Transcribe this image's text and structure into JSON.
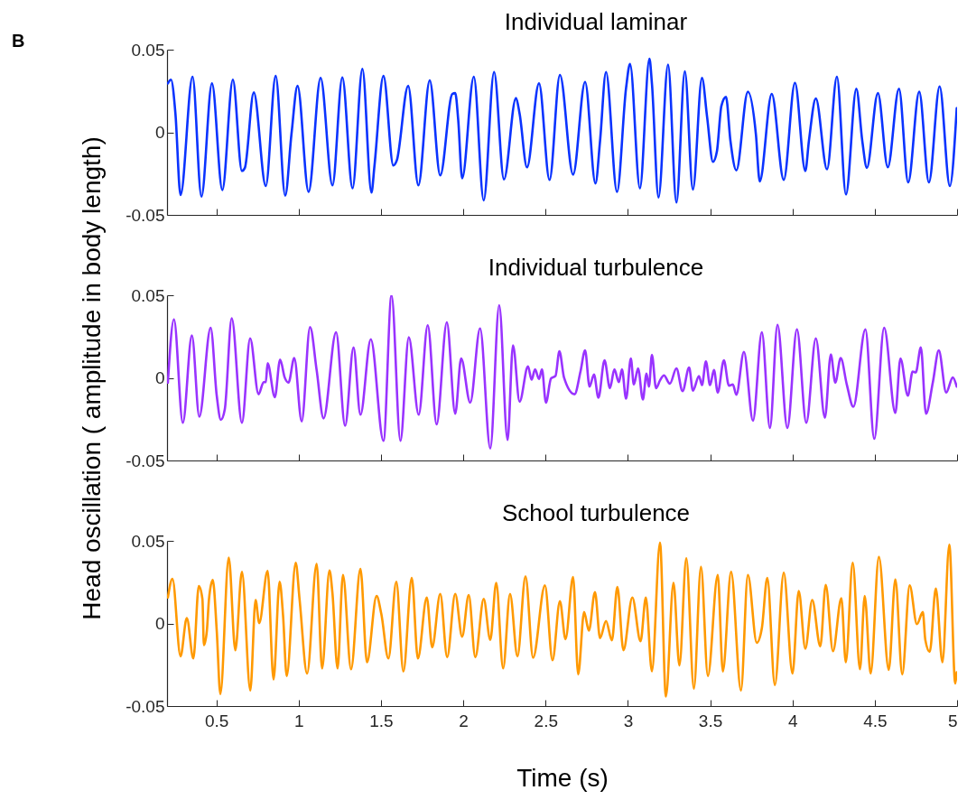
{
  "chart_data": [
    {
      "type": "line",
      "title": "Individual laminar",
      "annotations": [
        "B"
      ],
      "xlim": [
        0.2,
        5
      ],
      "xticks": [
        0.5,
        1,
        1.5,
        2,
        2.5,
        3,
        3.5,
        4,
        4.5,
        5
      ],
      "ylim": [
        -0.05,
        0.05
      ],
      "yticks": [
        -0.05,
        0,
        0.05
      ],
      "tick_labels": "y",
      "grid": false,
      "legend": false,
      "marker": "none",
      "line_style": "solid",
      "x": [
        0.205,
        0.224,
        0.251,
        0.282,
        0.355,
        0.409,
        0.473,
        0.536,
        0.6,
        0.655,
        0.673,
        0.727,
        0.8,
        0.86,
        0.918,
        0.956,
        0.993,
        1.06,
        1.133,
        1.205,
        1.265,
        1.327,
        1.387,
        1.442,
        1.46,
        1.515,
        1.575,
        1.596,
        1.665,
        1.727,
        1.796,
        1.86,
        1.933,
        1.951,
        1.969,
        1.993,
        2.064,
        2.124,
        2.187,
        2.247,
        2.32,
        2.342,
        2.387,
        2.46,
        2.524,
        2.587,
        2.667,
        2.74,
        2.803,
        2.831,
        2.867,
        2.934,
        2.989,
        3.013,
        3.073,
        3.131,
        3.146,
        3.186,
        3.244,
        3.295,
        3.346,
        3.395,
        3.45,
        3.481,
        3.517,
        3.541,
        3.568,
        3.596,
        3.623,
        3.659,
        3.729,
        3.778,
        3.801,
        3.874,
        3.947,
        4.015,
        4.078,
        4.1,
        4.142,
        4.21,
        4.27,
        4.325,
        4.388,
        4.424,
        4.452,
        4.519,
        4.579,
        4.647,
        4.703,
        4.77,
        4.829,
        4.894,
        4.956,
        4.998
      ],
      "series": [
        {
          "color": "#0a33ff",
          "values": [
            0.0296,
            0.0318,
            0.0113,
            -0.038,
            0.0336,
            -0.0389,
            0.0296,
            -0.0349,
            0.0318,
            -0.0234,
            -0.0215,
            0.0241,
            -0.0325,
            0.0341,
            -0.0383,
            -0.0011,
            0.0281,
            -0.0361,
            0.0329,
            -0.0321,
            0.0332,
            -0.0339,
            0.0383,
            -0.0365,
            -0.0206,
            0.0341,
            -0.0201,
            -0.017,
            0.0281,
            -0.0321,
            0.0314,
            -0.0261,
            0.0232,
            0.0237,
            0.0077,
            -0.0279,
            0.0336,
            -0.0412,
            0.0365,
            -0.0285,
            0.0208,
            0.0113,
            -0.0212,
            0.0296,
            -0.0288,
            0.0347,
            -0.0256,
            0.0305,
            -0.031,
            -0.0051,
            0.0365,
            -0.0361,
            0.0268,
            0.0414,
            -0.0339,
            0.0445,
            0.0296,
            -0.0394,
            0.0409,
            -0.0425,
            0.0369,
            -0.0347,
            0.0329,
            0.0095,
            -0.0179,
            -0.0115,
            0.0159,
            0.0214,
            -0.0051,
            -0.023,
            0.0245,
            -0.0015,
            -0.0297,
            0.0232,
            -0.0288,
            0.0299,
            -0.0234,
            -0.0051,
            0.0204,
            -0.0224,
            0.0336,
            -0.0376,
            0.0263,
            -0.0051,
            -0.0215,
            0.0237,
            -0.0212,
            0.0263,
            -0.0303,
            0.0245,
            -0.0303,
            0.0277,
            -0.0325,
            0.0146
          ]
        }
      ]
    },
    {
      "type": "line",
      "title": "Individual turbulence",
      "ylabel": "Head oscillation ( amplitude in body length)",
      "xlim": [
        0.2,
        5
      ],
      "xticks": [
        0.5,
        1,
        1.5,
        2,
        2.5,
        3,
        3.5,
        4,
        4.5,
        5
      ],
      "ylim": [
        -0.05,
        0.05
      ],
      "yticks": [
        -0.05,
        0,
        0.05
      ],
      "tick_labels": "y",
      "grid": false,
      "legend": false,
      "marker": "none",
      "line_style": "solid",
      "x": [
        0.205,
        0.242,
        0.296,
        0.351,
        0.396,
        0.465,
        0.502,
        0.527,
        0.551,
        0.593,
        0.655,
        0.705,
        0.756,
        0.787,
        0.8,
        0.811,
        0.855,
        0.887,
        0.915,
        0.938,
        0.973,
        1.018,
        1.069,
        1.109,
        1.151,
        1.227,
        1.282,
        1.333,
        1.375,
        1.438,
        1.515,
        1.564,
        1.618,
        1.669,
        1.729,
        1.784,
        1.838,
        1.9,
        1.951,
        1.987,
        2.042,
        2.102,
        2.164,
        2.218,
        2.269,
        2.302,
        2.342,
        2.393,
        2.415,
        2.436,
        2.46,
        2.478,
        2.502,
        2.533,
        2.56,
        2.584,
        2.612,
        2.676,
        2.712,
        2.74,
        2.767,
        2.794,
        2.821,
        2.858,
        2.891,
        2.918,
        2.945,
        2.964,
        2.989,
        3.018,
        3.036,
        3.062,
        3.091,
        3.113,
        3.128,
        3.146,
        3.171,
        3.195,
        3.219,
        3.255,
        3.295,
        3.332,
        3.372,
        3.395,
        3.432,
        3.45,
        3.474,
        3.499,
        3.523,
        3.546,
        3.583,
        3.614,
        3.638,
        3.659,
        3.705,
        3.76,
        3.814,
        3.863,
        3.909,
        3.969,
        4.027,
        4.084,
        4.142,
        4.197,
        4.233,
        4.26,
        4.293,
        4.33,
        4.37,
        4.443,
        4.497,
        4.557,
        4.625,
        4.656,
        4.701,
        4.73,
        4.749,
        4.78,
        4.811,
        4.853,
        4.889,
        4.934,
        4.974,
        4.998
      ],
      "series": [
        {
          "color": "#9933ff",
          "values": [
            -0.0029,
            0.0354,
            -0.0272,
            0.0257,
            -0.0235,
            0.0303,
            -0.0108,
            -0.0254,
            -0.019,
            0.0361,
            -0.0272,
            0.0239,
            -0.0099,
            -0.0026,
            -0.0026,
            0.0088,
            -0.0117,
            0.0111,
            0.0002,
            -0.0029,
            0.012,
            -0.0263,
            0.0307,
            0.0047,
            -0.0245,
            0.0276,
            -0.029,
            0.0184,
            -0.0223,
            0.0234,
            -0.0381,
            0.05,
            -0.0381,
            0.0245,
            -0.0223,
            0.0318,
            -0.0281,
            0.0336,
            -0.0217,
            0.0117,
            -0.015,
            0.0299,
            -0.0427,
            0.044,
            -0.0376,
            0.0197,
            -0.0144,
            0.0069,
            -0.0011,
            0.0051,
            -0.0007,
            0.0051,
            -0.015,
            -0.0004,
            0.0011,
            0.0161,
            0.0002,
            -0.0099,
            0.0038,
            0.0166,
            -0.0053,
            0.002,
            -0.012,
            0.0106,
            -0.0062,
            0.0051,
            -0.0026,
            0.0051,
            -0.0126,
            0.0117,
            -0.004,
            0.0057,
            -0.0131,
            0.0026,
            -0.0053,
            0.0139,
            -0.0062,
            -0.0016,
            0.0015,
            -0.0035,
            0.0057,
            -0.008,
            0.0062,
            -0.0077,
            0.0011,
            -0.0044,
            0.0099,
            -0.0044,
            0.0047,
            -0.0089,
            0.0106,
            -0.0047,
            -0.004,
            -0.0102,
            0.0157,
            -0.0259,
            0.0276,
            -0.0303,
            0.0321,
            -0.0303,
            0.0294,
            -0.0272,
            0.0239,
            -0.0241,
            0.0142,
            -0.0029,
            0.012,
            -0.004,
            -0.0175,
            0.0294,
            -0.0369,
            0.0303,
            -0.0212,
            0.0117,
            -0.0108,
            0.0038,
            0.0033,
            0.0184,
            -0.0217,
            -0.0026,
            0.0166,
            -0.0089,
            0.0002,
            -0.0053
          ]
        }
      ]
    },
    {
      "type": "line",
      "title": "School turbulence",
      "xlabel": "Time (s)",
      "xlim": [
        0.2,
        5
      ],
      "xticks": [
        0.5,
        1,
        1.5,
        2,
        2.5,
        3,
        3.5,
        4,
        4.5,
        5
      ],
      "ylim": [
        -0.05,
        0.05
      ],
      "yticks": [
        -0.05,
        0,
        0.05
      ],
      "grid": false,
      "legend": false,
      "marker": "none",
      "line_style": "solid",
      "x": [
        0.205,
        0.233,
        0.282,
        0.32,
        0.36,
        0.393,
        0.415,
        0.424,
        0.442,
        0.455,
        0.478,
        0.502,
        0.524,
        0.575,
        0.615,
        0.655,
        0.706,
        0.738,
        0.76,
        0.811,
        0.847,
        0.884,
        0.905,
        0.927,
        0.982,
        1.005,
        1.051,
        1.109,
        1.142,
        1.187,
        1.205,
        1.236,
        1.269,
        1.318,
        1.375,
        1.415,
        1.473,
        1.502,
        1.545,
        1.593,
        1.636,
        1.687,
        1.724,
        1.778,
        1.811,
        1.86,
        1.902,
        1.951,
        1.993,
        2.033,
        2.073,
        2.124,
        2.164,
        2.2,
        2.242,
        2.284,
        2.329,
        2.378,
        2.424,
        2.496,
        2.542,
        2.587,
        2.621,
        2.667,
        2.698,
        2.734,
        2.763,
        2.8,
        2.831,
        2.867,
        2.903,
        2.936,
        2.973,
        3.027,
        3.077,
        3.109,
        3.146,
        3.195,
        3.231,
        3.277,
        3.313,
        3.355,
        3.401,
        3.444,
        3.486,
        3.546,
        3.577,
        3.627,
        3.687,
        3.729,
        3.783,
        3.814,
        3.847,
        3.893,
        3.947,
        4.0,
        4.038,
        4.078,
        4.12,
        4.169,
        4.202,
        4.246,
        4.297,
        4.324,
        4.366,
        4.41,
        4.439,
        4.475,
        4.525,
        4.585,
        4.625,
        4.667,
        4.712,
        4.756,
        4.792,
        4.807,
        4.834,
        4.871,
        4.911,
        4.953,
        4.989,
        4.998
      ],
      "series": [
        {
          "color": "#ff9900",
          "values": [
            0.0157,
            0.027,
            -0.0199,
            0.0033,
            -0.0212,
            0.0226,
            0.0148,
            -0.0131,
            -0.0044,
            0.0148,
            0.0263,
            -0.0044,
            -0.0427,
            0.0398,
            -0.0162,
            0.0312,
            -0.0405,
            0.0142,
            0.0002,
            0.0318,
            -0.0339,
            0.0252,
            0.0047,
            -0.0318,
            0.0367,
            0.0148,
            -0.0303,
            0.0361,
            -0.0272,
            0.0321,
            0.0184,
            -0.0272,
            0.0294,
            -0.0277,
            0.033,
            -0.0235,
            0.0166,
            0.0057,
            -0.0212,
            0.0252,
            -0.029,
            0.0276,
            -0.0212,
            0.0157,
            -0.0144,
            0.0179,
            -0.0204,
            0.0179,
            -0.008,
            0.0172,
            -0.0204,
            0.0148,
            -0.0099,
            0.0245,
            -0.0272,
            0.0179,
            -0.0199,
            0.0285,
            -0.0208,
            0.023,
            -0.0223,
            0.0135,
            -0.0095,
            0.0281,
            -0.0308,
            0.0069,
            -0.0044,
            0.019,
            -0.0089,
            0.0015,
            -0.0102,
            0.0221,
            -0.0162,
            0.0157,
            -0.0108,
            0.0157,
            -0.029,
            0.0489,
            -0.0442,
            0.0245,
            -0.0254,
            0.0394,
            -0.0394,
            0.0343,
            -0.0318,
            0.0294,
            -0.029,
            0.0312,
            -0.0405,
            0.0294,
            -0.0117,
            -0.0029,
            0.0276,
            -0.0372,
            0.0307,
            -0.0303,
            0.0197,
            -0.0153,
            0.0142,
            -0.0139,
            0.0234,
            -0.0168,
            0.0153,
            -0.0235,
            0.0367,
            -0.0277,
            0.0166,
            -0.0303,
            0.0403,
            -0.0281,
            0.0266,
            -0.0308,
            0.023,
            -0.0004,
            0.0069,
            -0.0099,
            -0.0172,
            0.0212,
            -0.0235,
            0.0476,
            -0.0363,
            -0.0296
          ]
        }
      ]
    }
  ]
}
